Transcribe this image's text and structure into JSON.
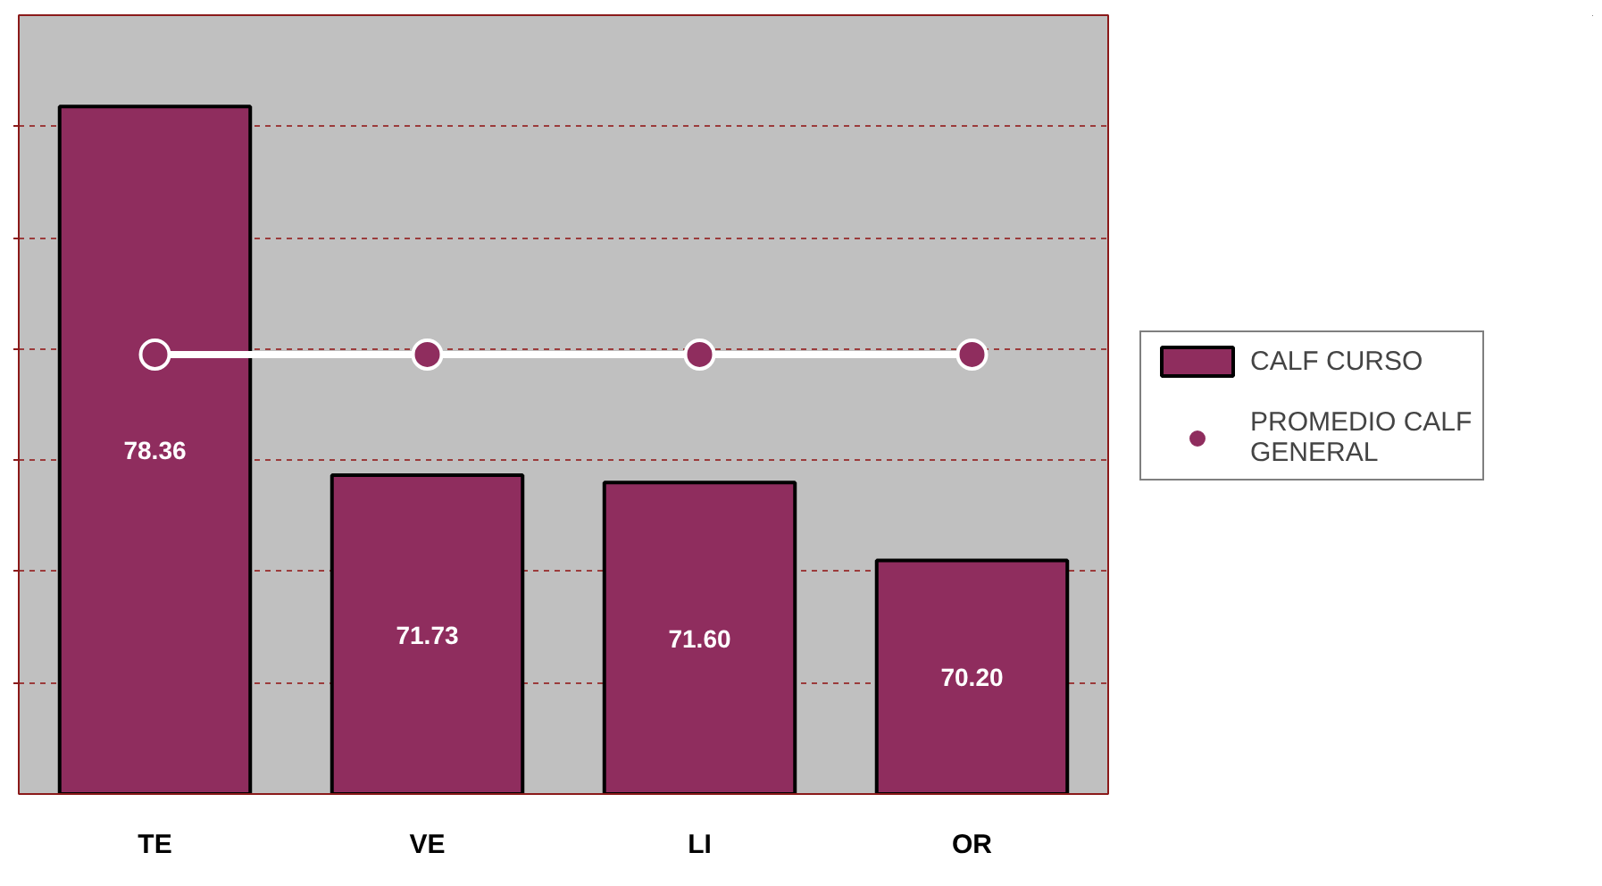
{
  "chart_data": {
    "type": "bar",
    "categories": [
      "TE",
      "VE",
      "LI",
      "OR"
    ],
    "series": [
      {
        "name": "CALF CURSO",
        "color": "#8f2d5e",
        "values": [
          78.36,
          71.73,
          71.6,
          70.2
        ],
        "value_labels": [
          "78.36",
          "71.73",
          "71.60",
          "70.20"
        ]
      },
      {
        "name": "PROMEDIO CALF GENERAL",
        "type": "line",
        "color": "#8f2d5e",
        "values": [
          73.9,
          73.9,
          73.9,
          73.9
        ],
        "marker": "circle"
      }
    ],
    "ylim": [
      66,
      80
    ],
    "yticks": [
      {
        "value": 68,
        "label": null
      },
      {
        "value": 70,
        "label": null
      },
      {
        "value": 72,
        "label": null
      },
      {
        "value": 74,
        "label": null
      },
      {
        "value": 76,
        "label": null
      },
      {
        "value": 78,
        "label": null
      }
    ],
    "grid": "y",
    "legend": "right",
    "tick_labels": "x"
  }
}
